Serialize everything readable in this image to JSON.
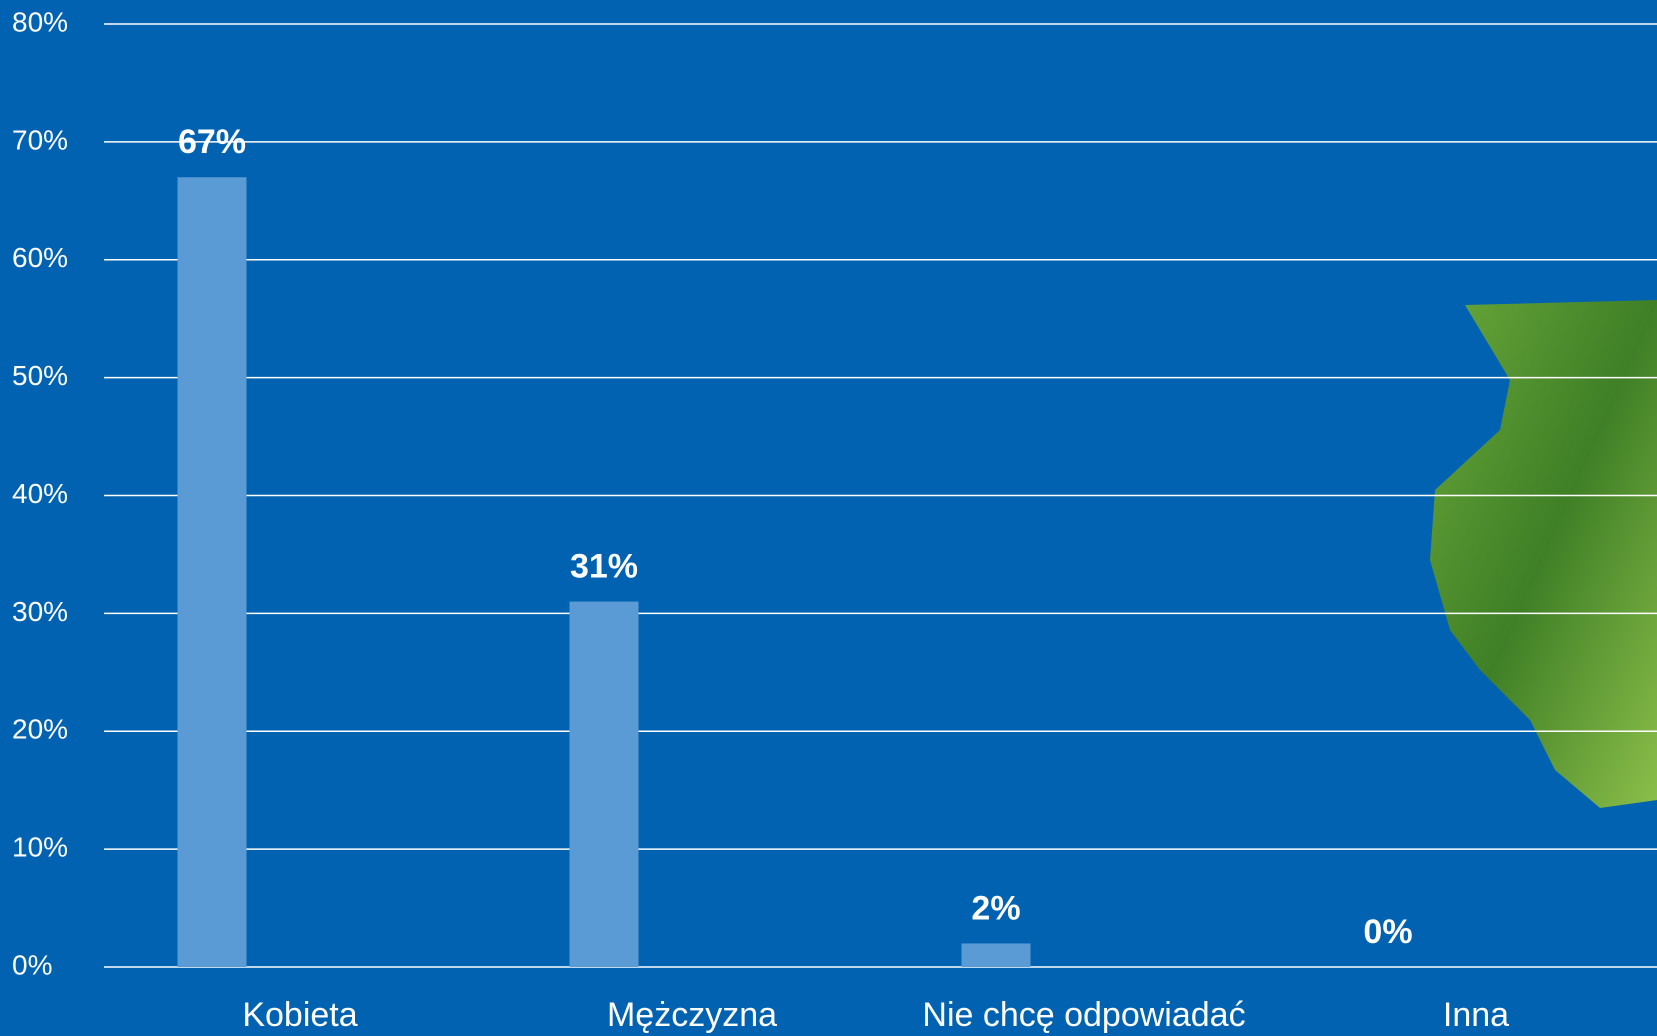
{
  "chart_data": {
    "type": "bar",
    "categories": [
      "Kobieta",
      "Mężczyzna",
      "Nie chcę odpowiadać",
      "Inna"
    ],
    "values": [
      67,
      31,
      2,
      0
    ],
    "value_labels": [
      "67%",
      "31%",
      "2%",
      "0%"
    ],
    "color": "#5b9bd5",
    "ylim": [
      0,
      80
    ],
    "yticks": [
      {
        "value": 0,
        "label": "0%"
      },
      {
        "value": 10,
        "label": "10%"
      },
      {
        "value": 20,
        "label": "20%"
      },
      {
        "value": 30,
        "label": "30%"
      },
      {
        "value": 40,
        "label": "40%"
      },
      {
        "value": 50,
        "label": "50%"
      },
      {
        "value": 60,
        "label": "60%"
      },
      {
        "value": 70,
        "label": "70%"
      },
      {
        "value": 80,
        "label": "80%"
      }
    ],
    "grid": true
  }
}
